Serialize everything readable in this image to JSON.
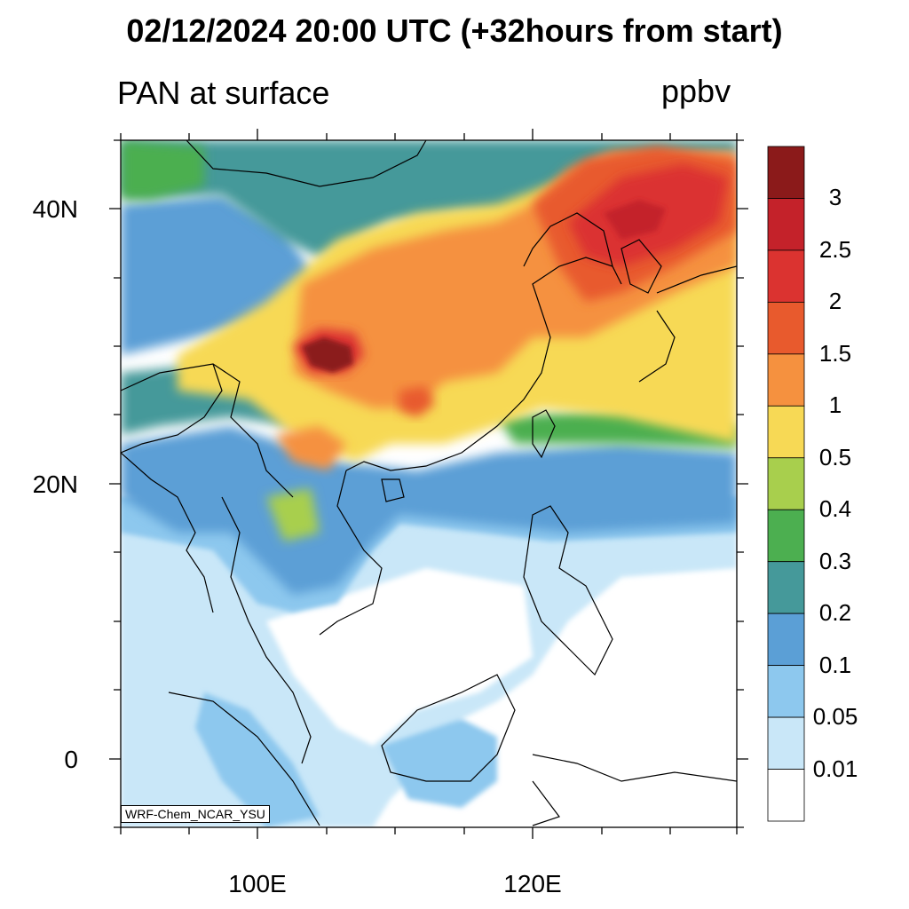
{
  "title": "02/12/2024 20:00 UTC (+32hours from start)",
  "variable": "PAN at surface",
  "units": "ppbv",
  "credit": "WRF-Chem_NCAR_YSU",
  "lat_labels": [
    "40N",
    "20N",
    "0"
  ],
  "lon_labels": [
    "100E",
    "120E"
  ],
  "colorbar": {
    "labels": [
      "3",
      "2.5",
      "2",
      "1.5",
      "1",
      "0.5",
      "0.4",
      "0.3",
      "0.2",
      "0.1",
      "0.05",
      "0.01"
    ],
    "colors": [
      "#8b1a1a",
      "#c4222a",
      "#db3330",
      "#e85a2d",
      "#f5913f",
      "#f7d955",
      "#a8cf4d",
      "#4caf50",
      "#45999a",
      "#5b9fd6",
      "#8dc8ee",
      "#c9e7f8",
      "#ffffff"
    ]
  }
}
